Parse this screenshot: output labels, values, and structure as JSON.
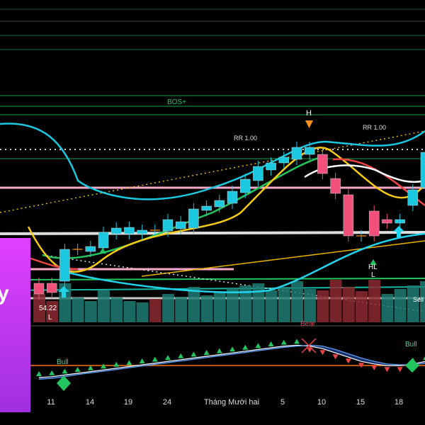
{
  "chart_data": {
    "type": "candlestick",
    "labels": {
      "bos": "BOS+",
      "high": "H",
      "rr_left": "RR 1.00",
      "rr_right": "RR 1.00",
      "hl": "HL",
      "l_right": "L",
      "l_left": "L",
      "price_label": "54.22",
      "sell": "Sell",
      "bear": "Bear",
      "bull_left": "Bull",
      "bull_right": "Bull"
    },
    "x_ticks": [
      "11",
      "14",
      "19",
      "24",
      "Tháng Mười hai",
      "5",
      "10",
      "15",
      "18"
    ],
    "candles": [
      {
        "o": 100,
        "c": 85
      },
      {
        "o": 100,
        "c": 87
      },
      {
        "o": 103,
        "c": 148
      },
      {
        "o": 148,
        "c": 148
      },
      {
        "o": 145,
        "c": 152
      },
      {
        "o": 150,
        "c": 172
      },
      {
        "o": 170,
        "c": 178
      },
      {
        "o": 170,
        "c": 179
      },
      {
        "o": 170,
        "c": 175
      },
      {
        "o": 175,
        "c": 175
      },
      {
        "o": 174,
        "c": 190
      },
      {
        "o": 177,
        "c": 187
      },
      {
        "o": 178,
        "c": 205
      },
      {
        "o": 203,
        "c": 209
      },
      {
        "o": 208,
        "c": 217
      },
      {
        "o": 213,
        "c": 230
      },
      {
        "o": 228,
        "c": 247
      },
      {
        "o": 245,
        "c": 265
      },
      {
        "o": 260,
        "c": 270
      },
      {
        "o": 270,
        "c": 278
      },
      {
        "o": 275,
        "c": 292
      },
      {
        "o": 282,
        "c": 292
      },
      {
        "o": 282,
        "c": 255
      },
      {
        "o": 248,
        "c": 227
      },
      {
        "o": 225,
        "c": 167
      },
      {
        "o": 167,
        "c": 167
      },
      {
        "o": 202,
        "c": 167
      },
      {
        "o": 190,
        "c": 185
      },
      {
        "o": 185,
        "c": 190
      },
      {
        "o": 210,
        "c": 232
      },
      {
        "o": 235,
        "c": 285
      }
    ],
    "volume": [
      40,
      30,
      55,
      35,
      30,
      45,
      35,
      30,
      28,
      33,
      40,
      36,
      50,
      38,
      42,
      48,
      52,
      55,
      45,
      50,
      58,
      47,
      45,
      60,
      50,
      44,
      60,
      40,
      47,
      52,
      58
    ],
    "volume_up": [
      false,
      false,
      true,
      true,
      true,
      true,
      true,
      true,
      true,
      false,
      true,
      true,
      true,
      true,
      true,
      true,
      true,
      true,
      true,
      true,
      true,
      true,
      false,
      false,
      false,
      false,
      false,
      true,
      true,
      true,
      true
    ],
    "oscillator": [
      -30,
      -28,
      -24,
      -20,
      -16,
      -12,
      -8,
      -4,
      0,
      4,
      8,
      12,
      16,
      20,
      24,
      28,
      32,
      36,
      40,
      44,
      46,
      44,
      38,
      28,
      18,
      8,
      2,
      -2,
      -2,
      2,
      8
    ],
    "signal": [
      -34,
      -32,
      -28,
      -23,
      -19,
      -15,
      -11,
      -7,
      -3,
      1,
      5,
      9,
      13,
      17,
      21,
      25,
      29,
      33,
      37,
      41,
      44,
      46,
      44,
      36,
      26,
      16,
      8,
      2,
      0,
      0,
      4
    ],
    "colors": {
      "up": "#1cc8e0",
      "down": "#f0507a",
      "teal": "#1e7d74",
      "vol_down": "#8b2a30",
      "bos": "#22c55e"
    }
  }
}
